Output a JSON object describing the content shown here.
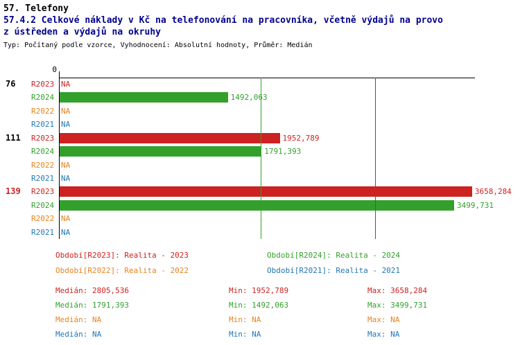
{
  "header": {
    "title": "57. Telefony",
    "title_line2": "57.4.2 Celkové náklady v Kč na telefonování na pracovníka, včetně výdajů na provo",
    "title_line3": "z ústředen a výdajů na okruhy",
    "meta": "Typ: Počítaný podle vzorce, Vyhodnocení: Absolutní hodnoty, Průměr: Medián"
  },
  "chart_data": {
    "type": "bar",
    "orientation": "horizontal",
    "title": "57.4.2 Celkové náklady v Kč na telefonování na pracovníka, včetně výdajů na provoz ústředen a výdajů na okruhy",
    "axis": {
      "origin_label": "0",
      "max": 3690,
      "xlim": [
        0,
        3690
      ]
    },
    "series": [
      {
        "id": "R2023",
        "label": "R2023",
        "color": "#CC2222",
        "name": "Realita - 2023"
      },
      {
        "id": "R2024",
        "label": "R2024",
        "color": "#33A02C",
        "name": "Realita - 2024"
      },
      {
        "id": "R2022",
        "label": "R2022",
        "color": "#E8821E",
        "name": "Realita - 2022"
      },
      {
        "id": "R2021",
        "label": "R2021",
        "color": "#1F77B4",
        "name": "Realita - 2021"
      }
    ],
    "groups": [
      {
        "label": "76",
        "color": "#000000",
        "values": [
          {
            "series": "R2023",
            "value": null,
            "display": "NA"
          },
          {
            "series": "R2024",
            "value": 1492.063,
            "display": "1492,063"
          },
          {
            "series": "R2022",
            "value": null,
            "display": "NA"
          },
          {
            "series": "R2021",
            "value": null,
            "display": "NA"
          }
        ]
      },
      {
        "label": "111",
        "color": "#000000",
        "values": [
          {
            "series": "R2023",
            "value": 1952.789,
            "display": "1952,789"
          },
          {
            "series": "R2024",
            "value": 1791.393,
            "display": "1791,393"
          },
          {
            "series": "R2022",
            "value": null,
            "display": "NA"
          },
          {
            "series": "R2021",
            "value": null,
            "display": "NA"
          }
        ]
      },
      {
        "label": "139",
        "color": "#CC2222",
        "values": [
          {
            "series": "R2023",
            "value": 3658.284,
            "display": "3658,284"
          },
          {
            "series": "R2024",
            "value": 3499.731,
            "display": "3499,731"
          },
          {
            "series": "R2022",
            "value": null,
            "display": "NA"
          },
          {
            "series": "R2021",
            "value": null,
            "display": "NA"
          }
        ]
      }
    ],
    "reference_lines": [
      {
        "series": "R2023",
        "meaning": "median",
        "value": 2805.536,
        "color": "#CC2222"
      },
      {
        "series": "R2024",
        "meaning": "median",
        "value": 1791.393,
        "color": "#33A02C"
      }
    ]
  },
  "legend": {
    "items": [
      {
        "series": "R2023",
        "label": "Období[R2023]: Realita - 2023",
        "color": "#CC2222"
      },
      {
        "series": "R2024",
        "label": "Období[R2024]: Realita - 2024",
        "color": "#33A02C"
      },
      {
        "series": "R2022",
        "label": "Období[R2022]: Realita - 2022",
        "color": "#E8821E"
      },
      {
        "series": "R2021",
        "label": "Období[R2021]: Realita - 2021",
        "color": "#1F77B4"
      }
    ]
  },
  "stats": {
    "median_label": "Medián",
    "min_label": "Min",
    "max_label": "Max",
    "rows": [
      {
        "series": "R2023",
        "color": "#CC2222",
        "median": "2805,536",
        "min": "1952,789",
        "max": "3658,284"
      },
      {
        "series": "R2024",
        "color": "#33A02C",
        "median": "1791,393",
        "min": "1492,063",
        "max": "3499,731"
      },
      {
        "series": "R2022",
        "color": "#E8821E",
        "median": "NA",
        "min": "NA",
        "max": "NA"
      },
      {
        "series": "R2021",
        "color": "#1F77B4",
        "median": "NA",
        "min": "NA",
        "max": "NA"
      }
    ]
  }
}
